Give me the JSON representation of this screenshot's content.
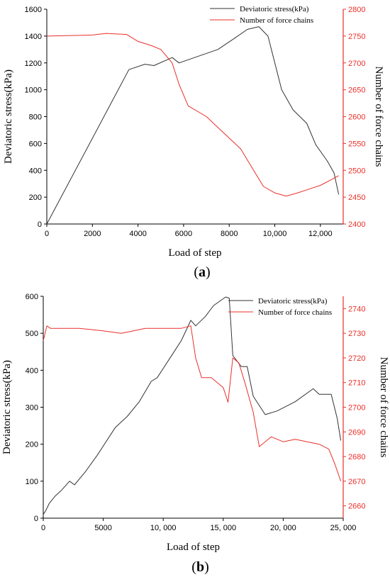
{
  "chart_data": [
    {
      "type": "line",
      "caption_letter": "a",
      "xlabel": "Load of step",
      "ylabel": "Deviatoric stress(kPa)",
      "y2label": "Number of force chains",
      "xlim": [
        0,
        13000
      ],
      "ylim": [
        0,
        1600
      ],
      "y2lim": [
        2400,
        2800
      ],
      "x_ticks": [
        0,
        2000,
        4000,
        6000,
        8000,
        10000,
        12000
      ],
      "x_tick_labels": [
        "0",
        "2000",
        "4000",
        "6000",
        "8000",
        "10,000",
        "12,000"
      ],
      "y_ticks": [
        0,
        200,
        400,
        600,
        800,
        1000,
        1200,
        1400,
        1600
      ],
      "y_tick_labels": [
        "0",
        "200",
        "400",
        "600",
        "800",
        "1000",
        "1200",
        "1400",
        "1600"
      ],
      "y2_ticks": [
        2400,
        2450,
        2500,
        2550,
        2600,
        2650,
        2700,
        2750,
        2800
      ],
      "y2_tick_labels": [
        "2400",
        "2450",
        "2500",
        "2550",
        "2600",
        "2650",
        "2700",
        "2750",
        "2800"
      ],
      "legend_position": "top-right",
      "series": [
        {
          "name": "Deviatoric stress(kPa)",
          "color": "#333333",
          "axis": "left",
          "x": [
            0,
            3600,
            4300,
            4700,
            5500,
            5800,
            7500,
            8200,
            8800,
            9300,
            9700,
            10300,
            10800,
            11400,
            11800,
            12300,
            12600,
            12800
          ],
          "y": [
            0,
            1150,
            1190,
            1180,
            1240,
            1200,
            1300,
            1380,
            1450,
            1470,
            1400,
            1000,
            850,
            750,
            590,
            470,
            380,
            220
          ]
        },
        {
          "name": "Number of force chains",
          "color": "#e8302a",
          "axis": "right",
          "x": [
            0,
            2000,
            2600,
            3500,
            4000,
            4600,
            5000,
            5500,
            5800,
            6200,
            7000,
            7500,
            8000,
            8500,
            9000,
            9500,
            10000,
            10500,
            11000,
            11500,
            12000,
            12500,
            12800
          ],
          "y": [
            2750,
            2752,
            2755,
            2753,
            2740,
            2732,
            2725,
            2700,
            2660,
            2620,
            2600,
            2580,
            2560,
            2540,
            2505,
            2470,
            2458,
            2452,
            2458,
            2465,
            2472,
            2483,
            2490
          ]
        }
      ]
    },
    {
      "type": "line",
      "caption_letter": "b",
      "xlabel": "Load of step",
      "ylabel": "Deviatoric stress(kPa)",
      "y2label": "Number of force chains",
      "xlim": [
        0,
        25000
      ],
      "ylim": [
        0,
        600
      ],
      "y2lim": [
        2655,
        2745
      ],
      "x_ticks": [
        0,
        5000,
        10000,
        15000,
        20000,
        25000
      ],
      "x_tick_labels": [
        "0",
        "5000",
        "10, 000",
        "15, 000",
        "20, 000",
        "25, 000"
      ],
      "y_ticks": [
        0,
        100,
        200,
        300,
        400,
        500,
        600
      ],
      "y_tick_labels": [
        "0",
        "100",
        "200",
        "300",
        "400",
        "500",
        "600"
      ],
      "y2_ticks": [
        2660,
        2670,
        2680,
        2690,
        2700,
        2710,
        2720,
        2730,
        2740
      ],
      "y2_tick_labels": [
        "2660",
        "2670",
        "2680",
        "2690",
        "2700",
        "2710",
        "2720",
        "2730",
        "2740"
      ],
      "legend_position": "top-right",
      "series": [
        {
          "name": "Deviatoric stress(kPa)",
          "color": "#333333",
          "axis": "left",
          "x": [
            0,
            200,
            500,
            1000,
            1500,
            2200,
            2600,
            3500,
            4500,
            6000,
            7000,
            8000,
            9000,
            9500,
            10500,
            11500,
            12300,
            12700,
            13500,
            14200,
            15200,
            15500,
            15800,
            16500,
            17000,
            17500,
            18500,
            19500,
            21000,
            22500,
            23000,
            24000,
            24500,
            24800
          ],
          "y": [
            10,
            20,
            40,
            60,
            75,
            100,
            90,
            125,
            170,
            245,
            275,
            315,
            370,
            380,
            430,
            480,
            535,
            520,
            545,
            575,
            598,
            595,
            440,
            410,
            410,
            330,
            280,
            290,
            315,
            350,
            335,
            335,
            270,
            210
          ]
        },
        {
          "name": "Number of force chains",
          "color": "#e8302a",
          "axis": "right",
          "x": [
            0,
            300,
            600,
            1000,
            3000,
            5000,
            6500,
            7500,
            8500,
            10000,
            11500,
            12300,
            12700,
            13200,
            14000,
            15000,
            15400,
            15800,
            16300,
            16800,
            17500,
            18000,
            19000,
            20000,
            21000,
            22000,
            23000,
            23800,
            24300,
            24800
          ],
          "y": [
            2727,
            2733,
            2732,
            2732,
            2732,
            2731,
            2730,
            2731,
            2732,
            2732,
            2732,
            2733,
            2720,
            2712,
            2712,
            2708,
            2702,
            2720,
            2718,
            2710,
            2698,
            2684,
            2688,
            2686,
            2687,
            2686,
            2685,
            2683,
            2677,
            2670
          ]
        }
      ]
    }
  ]
}
